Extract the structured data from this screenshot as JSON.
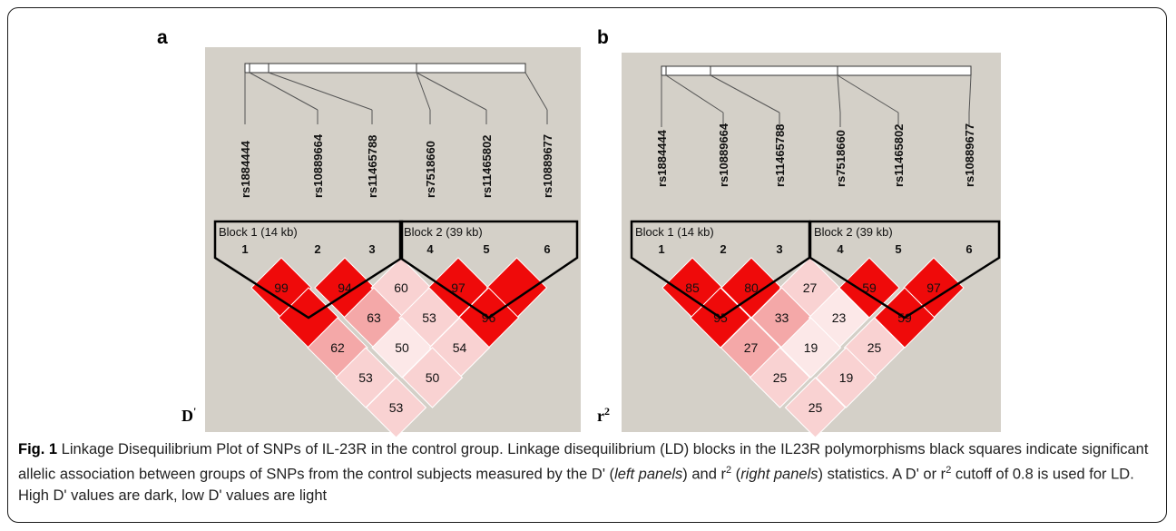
{
  "panels": [
    {
      "label": "a",
      "stat": "D'",
      "stat_base": "D",
      "stat_mark": "'",
      "snps": [
        "rs1884444",
        "rs10889664",
        "rs11465788",
        "rs7518660",
        "rs11465802",
        "rs10889677"
      ],
      "markers": [
        "1",
        "2",
        "3",
        "4",
        "5",
        "6"
      ],
      "blocks": [
        {
          "label": "Block 1 (14 kb)",
          "first": 1,
          "last": 3
        },
        {
          "label": "Block 2 (39 kb)",
          "first": 4,
          "last": 6
        }
      ],
      "cells": [
        {
          "i": 1,
          "j": 2,
          "text": "99",
          "level": "strong"
        },
        {
          "i": 2,
          "j": 3,
          "text": "94",
          "level": "strong"
        },
        {
          "i": 3,
          "j": 4,
          "text": "60",
          "level": "pale"
        },
        {
          "i": 4,
          "j": 5,
          "text": "97",
          "level": "strong"
        },
        {
          "i": 5,
          "j": 6,
          "text": "",
          "level": "strong"
        },
        {
          "i": 1,
          "j": 3,
          "text": "",
          "level": "strong"
        },
        {
          "i": 2,
          "j": 4,
          "text": "63",
          "level": "mid"
        },
        {
          "i": 3,
          "j": 5,
          "text": "53",
          "level": "pale"
        },
        {
          "i": 4,
          "j": 6,
          "text": "96",
          "level": "strong"
        },
        {
          "i": 1,
          "j": 4,
          "text": "62",
          "level": "mid"
        },
        {
          "i": 2,
          "j": 5,
          "text": "50",
          "level": "faint"
        },
        {
          "i": 3,
          "j": 6,
          "text": "54",
          "level": "pale"
        },
        {
          "i": 1,
          "j": 5,
          "text": "53",
          "level": "pale"
        },
        {
          "i": 2,
          "j": 6,
          "text": "50",
          "level": "pale"
        },
        {
          "i": 1,
          "j": 6,
          "text": "53",
          "level": "pale"
        }
      ]
    },
    {
      "label": "b",
      "stat": "r2",
      "stat_base": "r",
      "stat_mark": "2",
      "snps": [
        "rs1884444",
        "rs10889664",
        "rs11465788",
        "rs7518660",
        "rs11465802",
        "rs10889677"
      ],
      "markers": [
        "1",
        "2",
        "3",
        "4",
        "5",
        "6"
      ],
      "blocks": [
        {
          "label": "Block 1 (14 kb)",
          "first": 1,
          "last": 3
        },
        {
          "label": "Block 2 (39 kb)",
          "first": 4,
          "last": 6
        }
      ],
      "cells": [
        {
          "i": 1,
          "j": 2,
          "text": "85",
          "level": "strong"
        },
        {
          "i": 2,
          "j": 3,
          "text": "80",
          "level": "strong"
        },
        {
          "i": 3,
          "j": 4,
          "text": "27",
          "level": "pale"
        },
        {
          "i": 4,
          "j": 5,
          "text": "59",
          "level": "strong"
        },
        {
          "i": 5,
          "j": 6,
          "text": "97",
          "level": "strong"
        },
        {
          "i": 1,
          "j": 3,
          "text": "95",
          "level": "strong"
        },
        {
          "i": 2,
          "j": 4,
          "text": "33",
          "level": "mid"
        },
        {
          "i": 3,
          "j": 5,
          "text": "23",
          "level": "faint"
        },
        {
          "i": 4,
          "j": 6,
          "text": "59",
          "level": "strong"
        },
        {
          "i": 1,
          "j": 4,
          "text": "27",
          "level": "mid"
        },
        {
          "i": 2,
          "j": 5,
          "text": "19",
          "level": "faint"
        },
        {
          "i": 3,
          "j": 6,
          "text": "25",
          "level": "pale"
        },
        {
          "i": 1,
          "j": 5,
          "text": "25",
          "level": "pale"
        },
        {
          "i": 2,
          "j": 6,
          "text": "19",
          "level": "pale"
        },
        {
          "i": 1,
          "j": 6,
          "text": "25",
          "level": "pale"
        }
      ]
    }
  ],
  "colors": {
    "strong": "#ef0a0a",
    "mid": "#f4a8a8",
    "pale": "#f9d2d2",
    "faint": "#fce8e8",
    "background": "#d4d0c8"
  },
  "caption": {
    "fig": "Fig. 1",
    "p1": " Linkage Disequilibrium Plot of SNPs of IL-23R in the control group. Linkage disequilibrium (LD) blocks in the IL23R polymorphisms black squares indicate significant allelic association between groups of SNPs from the control subjects measured by the D' (",
    "left_panels": "left panels",
    "p2": ") and r",
    "sup": "2",
    "p3": " (",
    "right_panels": "right panels",
    "p4": ") statistics. A D' or r",
    "p5": " cutoff of 0.8 is used for LD. High D' values are dark, low D' values are light"
  }
}
